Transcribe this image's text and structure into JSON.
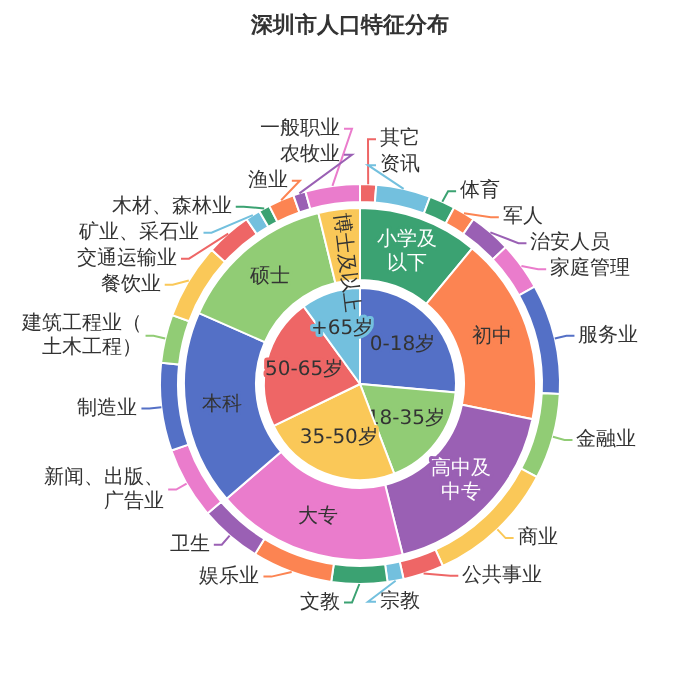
{
  "chart_data": [
    {
      "type": "pie",
      "title": "深圳市人口特征分布",
      "categories": [
        "0-18岁",
        "18-35岁",
        "35-50岁",
        "50-65岁",
        "+65岁"
      ],
      "values": [
        26.4,
        17.8,
        23.6,
        22.2,
        10
      ],
      "colors": [
        "#5470c6",
        "#91cc75",
        "#fac858",
        "#ee6666",
        "#73c0de"
      ]
    },
    {
      "type": "donut",
      "categories": [
        "小学及以下",
        "初中",
        "高中及中专",
        "大专",
        "本科",
        "硕士",
        "博士及以上"
      ],
      "values": [
        11,
        17.2,
        17.9,
        17.6,
        17.9,
        14.6,
        3.8
      ],
      "colors": [
        "#3ba272",
        "#fc8452",
        "#9a60b4",
        "#ea7ccc",
        "#5470c6",
        "#91cc75",
        "#fac858"
      ]
    },
    {
      "type": "donut",
      "categories": [
        "其它",
        "资讯",
        "体育",
        "军人",
        "治安人员",
        "家庭管理",
        "服务业",
        "金融业",
        "商业",
        "公共事业",
        "宗教",
        "文教",
        "娱乐业",
        "卫生",
        "新闻、出版、广告业",
        "制造业",
        "建筑工程业（土木工程）",
        "餐饮业",
        "交通运输业",
        "矿业、采石业",
        "木材、森林业",
        "渔业",
        "农牧业",
        "一般职业"
      ],
      "values": [
        1.3,
        4.4,
        2.1,
        1.8,
        3.4,
        3.9,
        8.9,
        6.9,
        10.5,
        3.3,
        1.3,
        4.5,
        6.5,
        5,
        5.8,
        7.1,
        3.9,
        6.1,
        3.7,
        1.2,
        0.9,
        2.1,
        1,
        4.4
      ],
      "colors": [
        "#ee6666",
        "#73c0de",
        "#3ba272",
        "#fc8452",
        "#9a60b4",
        "#ea7ccc",
        "#5470c6",
        "#91cc75",
        "#fac858",
        "#ee6666",
        "#73c0de",
        "#3ba272",
        "#fc8452",
        "#9a60b4",
        "#ea7ccc",
        "#5470c6",
        "#91cc75",
        "#fac858",
        "#ee6666",
        "#73c0de",
        "#3ba272",
        "#fc8452",
        "#9a60b4",
        "#ea7ccc"
      ]
    }
  ]
}
